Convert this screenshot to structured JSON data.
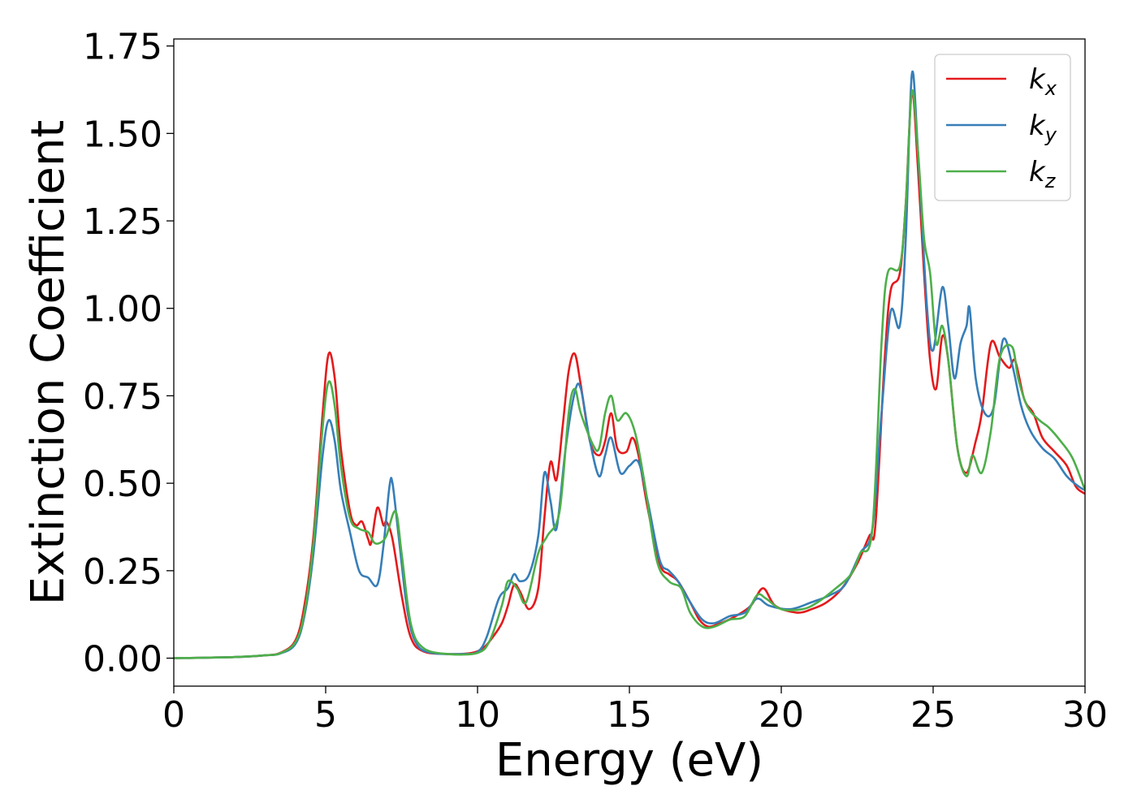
{
  "chart_data": {
    "type": "line",
    "title": "",
    "xlabel": "Energy (eV)",
    "ylabel": "Extinction Coefficient",
    "xlim": [
      0,
      30
    ],
    "ylim": [
      -0.08,
      1.77
    ],
    "xticks": [
      0,
      5,
      10,
      15,
      20,
      25,
      30
    ],
    "xtick_labels": [
      "0",
      "5",
      "10",
      "15",
      "20",
      "25",
      "30"
    ],
    "yticks": [
      0,
      0.25,
      0.5,
      0.75,
      1.0,
      1.25,
      1.5,
      1.75
    ],
    "ytick_labels": [
      "0.00",
      "0.25",
      "0.50",
      "0.75",
      "1.00",
      "1.25",
      "1.50",
      "1.75"
    ],
    "grid": false,
    "legend_position": "top-right",
    "series": [
      {
        "name": "k_x",
        "label_main": "k",
        "label_sub": "x",
        "color": "#e41a1c",
        "points": [
          [
            0,
            0
          ],
          [
            2,
            0.003
          ],
          [
            3,
            0.008
          ],
          [
            3.5,
            0.015
          ],
          [
            4,
            0.05
          ],
          [
            4.3,
            0.15
          ],
          [
            4.6,
            0.35
          ],
          [
            4.9,
            0.7
          ],
          [
            5.1,
            0.87
          ],
          [
            5.3,
            0.8
          ],
          [
            5.5,
            0.6
          ],
          [
            5.8,
            0.42
          ],
          [
            6.0,
            0.38
          ],
          [
            6.2,
            0.39
          ],
          [
            6.4,
            0.34
          ],
          [
            6.5,
            0.33
          ],
          [
            6.7,
            0.43
          ],
          [
            6.9,
            0.38
          ],
          [
            7.0,
            0.39
          ],
          [
            7.2,
            0.34
          ],
          [
            7.5,
            0.18
          ],
          [
            7.8,
            0.06
          ],
          [
            8.2,
            0.02
          ],
          [
            9,
            0.012
          ],
          [
            9.8,
            0.015
          ],
          [
            10.2,
            0.03
          ],
          [
            10.5,
            0.06
          ],
          [
            10.8,
            0.1
          ],
          [
            11.0,
            0.15
          ],
          [
            11.2,
            0.21
          ],
          [
            11.4,
            0.19
          ],
          [
            11.7,
            0.14
          ],
          [
            12.0,
            0.2
          ],
          [
            12.2,
            0.4
          ],
          [
            12.4,
            0.56
          ],
          [
            12.6,
            0.51
          ],
          [
            12.8,
            0.66
          ],
          [
            13.0,
            0.82
          ],
          [
            13.2,
            0.87
          ],
          [
            13.4,
            0.78
          ],
          [
            13.7,
            0.62
          ],
          [
            14.0,
            0.58
          ],
          [
            14.2,
            0.62
          ],
          [
            14.4,
            0.7
          ],
          [
            14.6,
            0.6
          ],
          [
            14.9,
            0.59
          ],
          [
            15.1,
            0.63
          ],
          [
            15.3,
            0.58
          ],
          [
            15.6,
            0.43
          ],
          [
            16.0,
            0.27
          ],
          [
            16.3,
            0.24
          ],
          [
            16.6,
            0.22
          ],
          [
            17.0,
            0.16
          ],
          [
            17.3,
            0.11
          ],
          [
            17.6,
            0.09
          ],
          [
            18.0,
            0.1
          ],
          [
            18.5,
            0.12
          ],
          [
            19.0,
            0.15
          ],
          [
            19.4,
            0.2
          ],
          [
            19.8,
            0.15
          ],
          [
            20.5,
            0.13
          ],
          [
            21.0,
            0.14
          ],
          [
            21.5,
            0.16
          ],
          [
            22.0,
            0.2
          ],
          [
            22.5,
            0.27
          ],
          [
            22.9,
            0.35
          ],
          [
            23.1,
            0.38
          ],
          [
            23.4,
            0.85
          ],
          [
            23.6,
            1.05
          ],
          [
            23.9,
            1.1
          ],
          [
            24.1,
            1.3
          ],
          [
            24.3,
            1.62
          ],
          [
            24.5,
            1.4
          ],
          [
            24.7,
            1.1
          ],
          [
            24.9,
            0.85
          ],
          [
            25.1,
            0.77
          ],
          [
            25.3,
            0.92
          ],
          [
            25.5,
            0.85
          ],
          [
            25.8,
            0.6
          ],
          [
            26.1,
            0.53
          ],
          [
            26.4,
            0.62
          ],
          [
            26.6,
            0.7
          ],
          [
            26.9,
            0.9
          ],
          [
            27.2,
            0.86
          ],
          [
            27.5,
            0.83
          ],
          [
            27.7,
            0.85
          ],
          [
            28.0,
            0.74
          ],
          [
            28.3,
            0.7
          ],
          [
            28.6,
            0.63
          ],
          [
            29.0,
            0.59
          ],
          [
            29.4,
            0.55
          ],
          [
            29.7,
            0.49
          ],
          [
            30,
            0.47
          ]
        ]
      },
      {
        "name": "k_y",
        "label_main": "k",
        "label_sub": "y",
        "color": "#377eb8",
        "points": [
          [
            0,
            0
          ],
          [
            2,
            0.003
          ],
          [
            3,
            0.008
          ],
          [
            3.5,
            0.013
          ],
          [
            4,
            0.04
          ],
          [
            4.3,
            0.12
          ],
          [
            4.6,
            0.3
          ],
          [
            4.9,
            0.58
          ],
          [
            5.1,
            0.68
          ],
          [
            5.3,
            0.62
          ],
          [
            5.5,
            0.48
          ],
          [
            5.8,
            0.36
          ],
          [
            6.1,
            0.25
          ],
          [
            6.4,
            0.23
          ],
          [
            6.7,
            0.21
          ],
          [
            6.9,
            0.32
          ],
          [
            7.1,
            0.49
          ],
          [
            7.2,
            0.5
          ],
          [
            7.4,
            0.35
          ],
          [
            7.7,
            0.13
          ],
          [
            8.0,
            0.04
          ],
          [
            8.5,
            0.015
          ],
          [
            9.5,
            0.012
          ],
          [
            10.0,
            0.018
          ],
          [
            10.3,
            0.06
          ],
          [
            10.7,
            0.17
          ],
          [
            11.0,
            0.2
          ],
          [
            11.2,
            0.24
          ],
          [
            11.4,
            0.22
          ],
          [
            11.7,
            0.24
          ],
          [
            12.0,
            0.35
          ],
          [
            12.2,
            0.53
          ],
          [
            12.4,
            0.45
          ],
          [
            12.6,
            0.37
          ],
          [
            12.9,
            0.6
          ],
          [
            13.2,
            0.76
          ],
          [
            13.4,
            0.77
          ],
          [
            13.7,
            0.62
          ],
          [
            14.0,
            0.52
          ],
          [
            14.2,
            0.58
          ],
          [
            14.4,
            0.63
          ],
          [
            14.7,
            0.53
          ],
          [
            15.0,
            0.55
          ],
          [
            15.3,
            0.56
          ],
          [
            15.6,
            0.45
          ],
          [
            16.0,
            0.28
          ],
          [
            16.3,
            0.25
          ],
          [
            16.6,
            0.22
          ],
          [
            17.0,
            0.16
          ],
          [
            17.4,
            0.11
          ],
          [
            17.8,
            0.1
          ],
          [
            18.3,
            0.12
          ],
          [
            18.8,
            0.13
          ],
          [
            19.2,
            0.17
          ],
          [
            19.6,
            0.15
          ],
          [
            20.3,
            0.14
          ],
          [
            21.0,
            0.16
          ],
          [
            21.6,
            0.18
          ],
          [
            22.1,
            0.21
          ],
          [
            22.6,
            0.3
          ],
          [
            23.0,
            0.37
          ],
          [
            23.3,
            0.7
          ],
          [
            23.6,
            0.99
          ],
          [
            23.9,
            0.95
          ],
          [
            24.1,
            1.2
          ],
          [
            24.3,
            1.67
          ],
          [
            24.5,
            1.45
          ],
          [
            24.8,
            1.0
          ],
          [
            25.0,
            0.88
          ],
          [
            25.3,
            1.06
          ],
          [
            25.5,
            0.95
          ],
          [
            25.7,
            0.8
          ],
          [
            25.9,
            0.9
          ],
          [
            26.1,
            0.95
          ],
          [
            26.2,
            1.0
          ],
          [
            26.4,
            0.8
          ],
          [
            26.7,
            0.7
          ],
          [
            27.0,
            0.72
          ],
          [
            27.3,
            0.91
          ],
          [
            27.6,
            0.84
          ],
          [
            27.9,
            0.72
          ],
          [
            28.2,
            0.65
          ],
          [
            28.6,
            0.6
          ],
          [
            29.0,
            0.57
          ],
          [
            29.4,
            0.52
          ],
          [
            29.8,
            0.49
          ],
          [
            30,
            0.48
          ]
        ]
      },
      {
        "name": "k_z",
        "label_main": "k",
        "label_sub": "z",
        "color": "#4daf4a",
        "points": [
          [
            0,
            0
          ],
          [
            2,
            0.003
          ],
          [
            3,
            0.008
          ],
          [
            3.5,
            0.014
          ],
          [
            4,
            0.045
          ],
          [
            4.3,
            0.13
          ],
          [
            4.6,
            0.33
          ],
          [
            4.9,
            0.66
          ],
          [
            5.1,
            0.79
          ],
          [
            5.3,
            0.72
          ],
          [
            5.5,
            0.55
          ],
          [
            5.8,
            0.4
          ],
          [
            6.1,
            0.37
          ],
          [
            6.4,
            0.36
          ],
          [
            6.6,
            0.33
          ],
          [
            6.8,
            0.33
          ],
          [
            7.0,
            0.35
          ],
          [
            7.3,
            0.42
          ],
          [
            7.5,
            0.3
          ],
          [
            7.8,
            0.1
          ],
          [
            8.2,
            0.03
          ],
          [
            9.0,
            0.012
          ],
          [
            10.0,
            0.015
          ],
          [
            10.4,
            0.05
          ],
          [
            10.8,
            0.15
          ],
          [
            11.0,
            0.22
          ],
          [
            11.3,
            0.2
          ],
          [
            11.6,
            0.16
          ],
          [
            12.0,
            0.3
          ],
          [
            12.3,
            0.35
          ],
          [
            12.7,
            0.42
          ],
          [
            13.0,
            0.7
          ],
          [
            13.2,
            0.77
          ],
          [
            13.4,
            0.7
          ],
          [
            13.8,
            0.61
          ],
          [
            14.0,
            0.6
          ],
          [
            14.2,
            0.7
          ],
          [
            14.4,
            0.75
          ],
          [
            14.6,
            0.68
          ],
          [
            14.9,
            0.7
          ],
          [
            15.2,
            0.64
          ],
          [
            15.5,
            0.5
          ],
          [
            15.9,
            0.28
          ],
          [
            16.3,
            0.22
          ],
          [
            16.7,
            0.2
          ],
          [
            17.0,
            0.13
          ],
          [
            17.4,
            0.09
          ],
          [
            17.8,
            0.09
          ],
          [
            18.3,
            0.11
          ],
          [
            18.8,
            0.12
          ],
          [
            19.2,
            0.18
          ],
          [
            19.5,
            0.17
          ],
          [
            20.0,
            0.14
          ],
          [
            20.7,
            0.14
          ],
          [
            21.2,
            0.16
          ],
          [
            21.8,
            0.2
          ],
          [
            22.3,
            0.24
          ],
          [
            22.6,
            0.3
          ],
          [
            23.0,
            0.37
          ],
          [
            23.3,
            0.9
          ],
          [
            23.5,
            1.1
          ],
          [
            23.9,
            1.12
          ],
          [
            24.1,
            1.3
          ],
          [
            24.3,
            1.62
          ],
          [
            24.5,
            1.45
          ],
          [
            24.7,
            1.2
          ],
          [
            24.9,
            1.1
          ],
          [
            25.1,
            0.9
          ],
          [
            25.3,
            0.95
          ],
          [
            25.5,
            0.85
          ],
          [
            25.8,
            0.6
          ],
          [
            26.1,
            0.52
          ],
          [
            26.3,
            0.58
          ],
          [
            26.6,
            0.53
          ],
          [
            26.9,
            0.65
          ],
          [
            27.2,
            0.86
          ],
          [
            27.6,
            0.89
          ],
          [
            27.8,
            0.8
          ],
          [
            28.1,
            0.72
          ],
          [
            28.5,
            0.68
          ],
          [
            28.8,
            0.66
          ],
          [
            29.2,
            0.62
          ],
          [
            29.6,
            0.57
          ],
          [
            30,
            0.48
          ]
        ]
      }
    ]
  }
}
